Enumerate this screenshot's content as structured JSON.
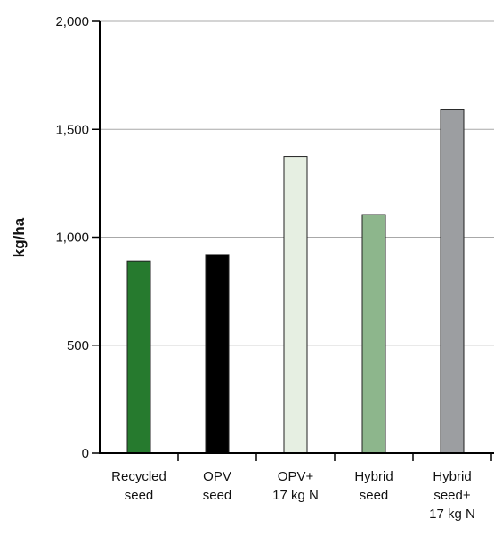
{
  "chart_data": {
    "type": "bar",
    "title": "",
    "xlabel": "",
    "ylabel": "kg/ha",
    "ylim": [
      0,
      2000
    ],
    "yticks": [
      0,
      500,
      1000,
      1500,
      2000
    ],
    "ytick_labels": [
      "0",
      "500",
      "1,000",
      "1,500",
      "2,000"
    ],
    "grid": "horizontal",
    "categories": [
      [
        "Recycled",
        "seed"
      ],
      [
        "OPV",
        "seed"
      ],
      [
        "OPV+",
        "17 kg N"
      ],
      [
        "Hybrid",
        "seed"
      ],
      [
        "Hybrid",
        "seed+",
        "17 kg N"
      ]
    ],
    "values": [
      890,
      920,
      1375,
      1105,
      1590
    ],
    "colors": [
      "#267a2e",
      "#000000",
      "#e6efe2",
      "#8db68c",
      "#9c9ea1"
    ]
  }
}
